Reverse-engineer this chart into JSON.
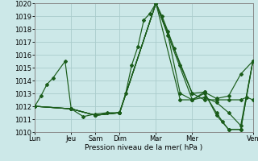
{
  "xlabel": "Pression niveau de la mer( hPa )",
  "background_color": "#cce8e8",
  "grid_color": "#aacccc",
  "line_color": "#1a5c1a",
  "ylim": [
    1010,
    1020
  ],
  "yticks": [
    1010,
    1011,
    1012,
    1013,
    1014,
    1015,
    1016,
    1017,
    1018,
    1019,
    1020
  ],
  "xtick_labels": [
    "Lun",
    "Jeu",
    "Sam",
    "Dim",
    "Mar",
    "Mer",
    "Ven"
  ],
  "xtick_positions": [
    0,
    3,
    5,
    7,
    10,
    13,
    18
  ],
  "xlim": [
    0,
    18
  ],
  "lines": [
    {
      "x": [
        0,
        0.5,
        1.0,
        1.5,
        2.5,
        3.0,
        4.0,
        5.0,
        6.0,
        7.0,
        7.5,
        8.0,
        8.5,
        9.0,
        9.5,
        10.0,
        10.5,
        11.0,
        11.5,
        12.0,
        13.0,
        14.0,
        15.0,
        16.0,
        17.0,
        17.5,
        18.0
      ],
      "y": [
        1012.0,
        1012.8,
        1013.7,
        1014.2,
        1015.5,
        1011.8,
        1011.2,
        1011.4,
        1011.5,
        1011.5,
        1013.0,
        1015.2,
        1016.6,
        1018.7,
        1019.2,
        1020.0,
        1019.0,
        1017.8,
        1016.5,
        1015.2,
        1013.0,
        1012.5,
        1012.5,
        1012.5,
        1012.5,
        1012.7,
        1012.5
      ]
    },
    {
      "x": [
        0,
        3,
        5,
        7,
        10,
        13,
        14,
        15,
        16,
        17,
        18
      ],
      "y": [
        1012.0,
        1011.8,
        1011.3,
        1011.5,
        1020.0,
        1013.0,
        1013.1,
        1012.6,
        1012.8,
        1014.5,
        1015.5
      ]
    },
    {
      "x": [
        0,
        3,
        5,
        7,
        10,
        11,
        12,
        13,
        14,
        15,
        16,
        17,
        18
      ],
      "y": [
        1012.0,
        1011.8,
        1011.3,
        1011.5,
        1020.0,
        1017.5,
        1013.0,
        1012.5,
        1012.7,
        1012.3,
        1011.5,
        1010.5,
        1015.5
      ]
    },
    {
      "x": [
        0,
        3,
        5,
        7,
        10,
        12,
        13,
        14,
        15,
        16,
        17,
        18
      ],
      "y": [
        1012.0,
        1011.8,
        1011.3,
        1011.5,
        1020.0,
        1012.5,
        1012.5,
        1013.1,
        1011.3,
        1010.2,
        1010.2,
        1015.5
      ]
    },
    {
      "x": [
        0,
        3,
        5,
        7,
        10,
        13,
        14,
        15,
        15.5,
        16,
        17,
        18
      ],
      "y": [
        1012.0,
        1011.8,
        1011.3,
        1011.5,
        1020.0,
        1012.5,
        1013.0,
        1011.5,
        1010.8,
        1010.2,
        1010.2,
        1015.5
      ]
    }
  ]
}
